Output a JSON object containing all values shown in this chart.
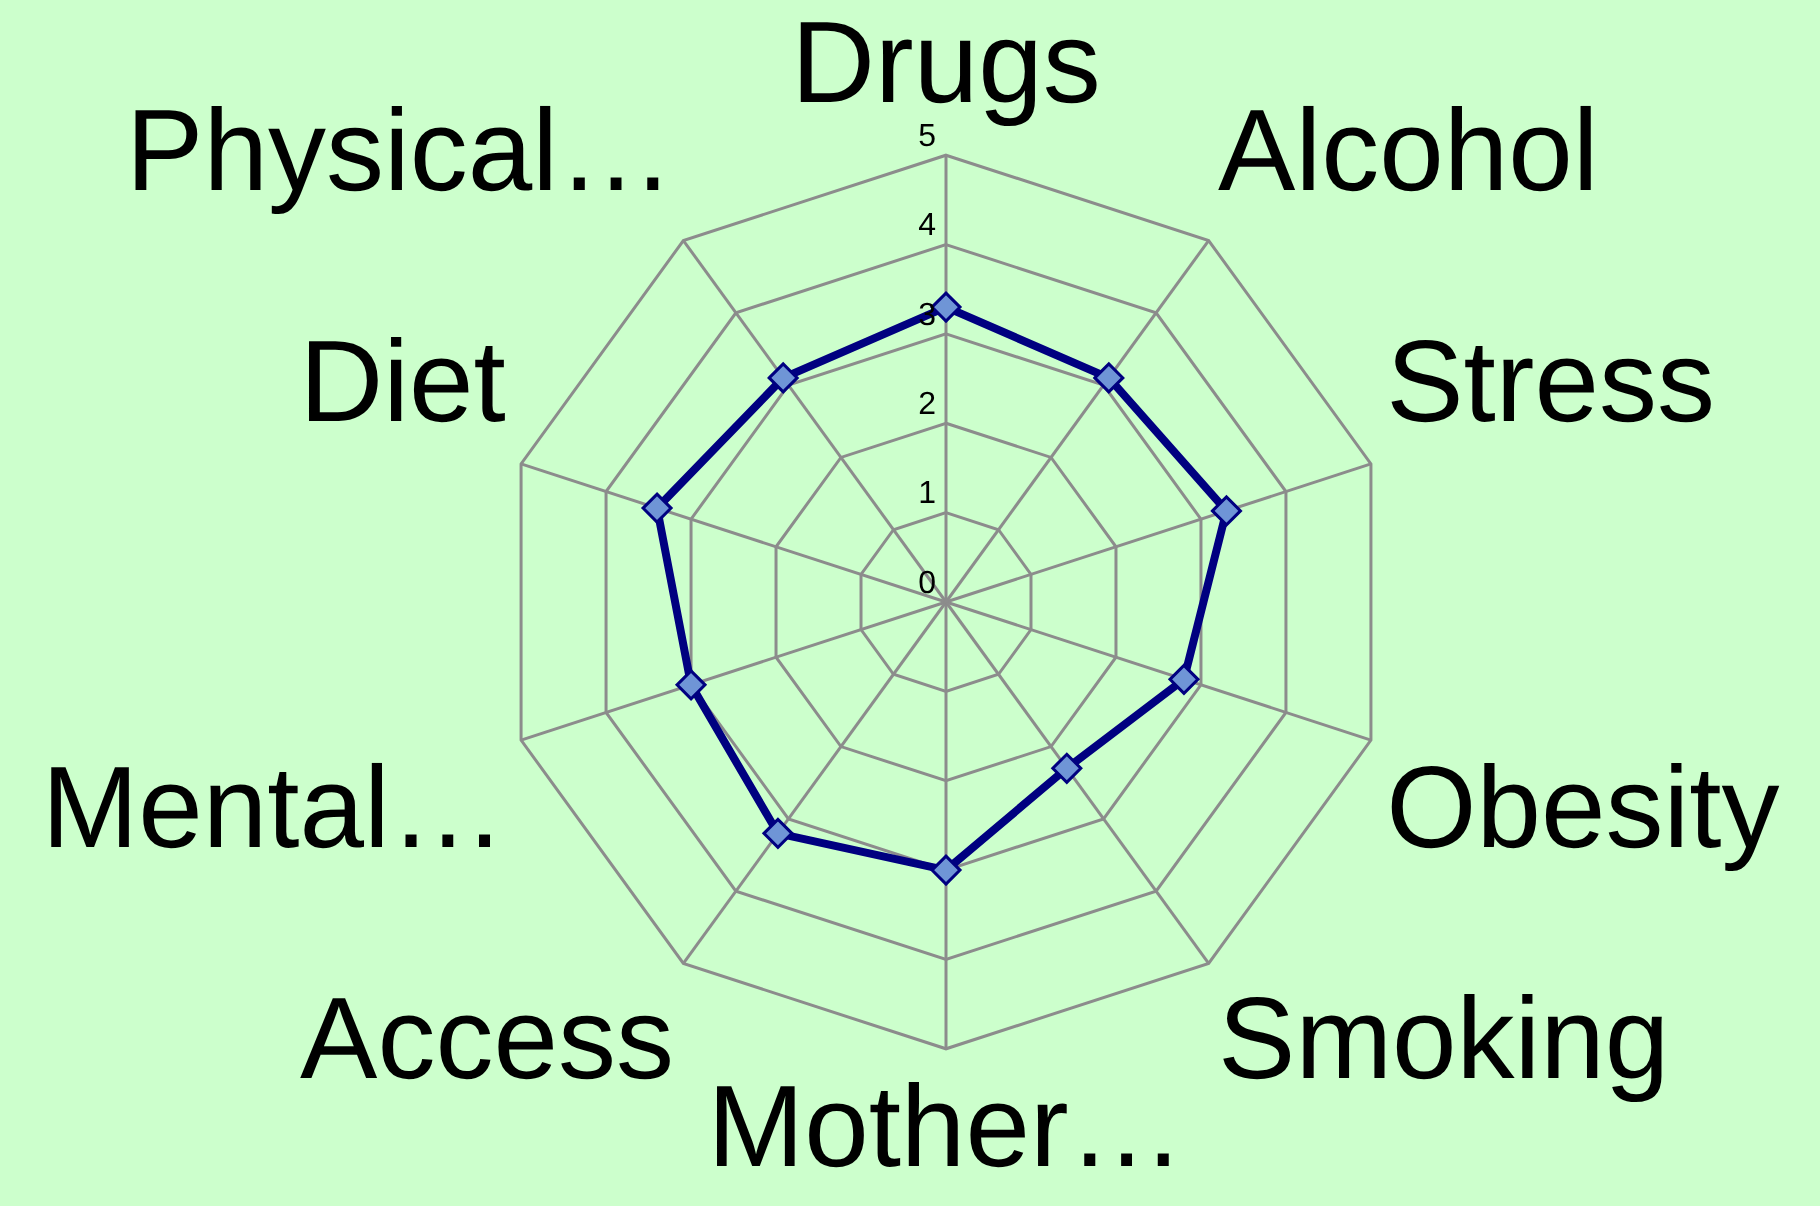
{
  "chart_data": {
    "type": "radar",
    "categories": [
      "Drugs",
      "Alcohol",
      "Stress",
      "Obesity",
      "Smoking",
      "Mother…",
      "Access",
      "Mental…",
      "Diet",
      "Physical…"
    ],
    "series": [
      {
        "color": "#000080",
        "values": [
          3.3,
          3.1,
          3.3,
          2.8,
          2.3,
          3.0,
          3.2,
          3.0,
          3.4,
          3.1
        ]
      }
    ],
    "ylim": [
      0,
      5
    ],
    "yticks": [
      0,
      1,
      2,
      3,
      4,
      5
    ],
    "grid": true,
    "legend": false,
    "marker": "diamond",
    "line_style": "solid"
  }
}
